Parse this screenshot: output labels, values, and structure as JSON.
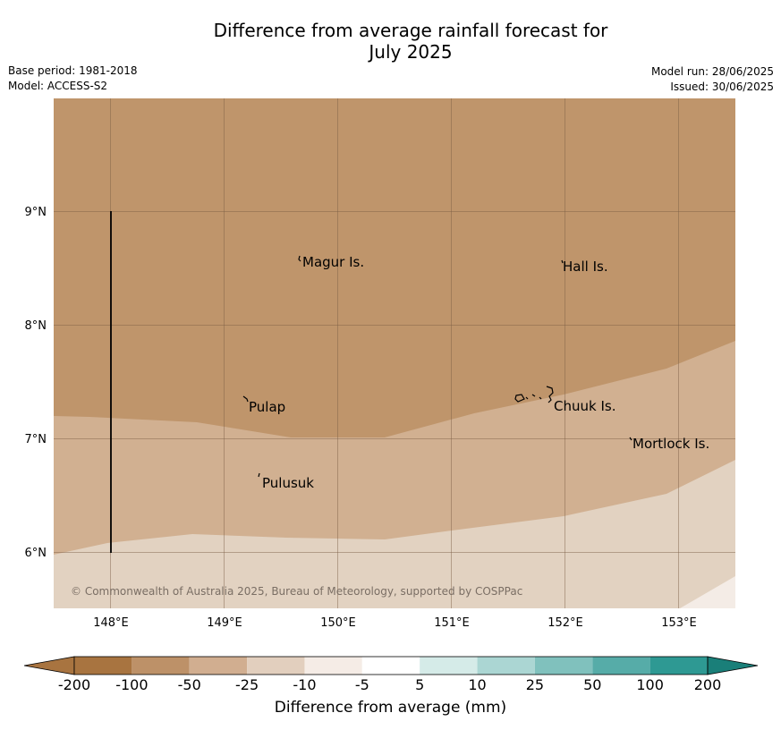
{
  "title_line1": "Difference from average rainfall forecast for",
  "title_line2": "July 2025",
  "base_period": "Base period: 1981-2018",
  "model": "Model: ACCESS-S2",
  "model_run": "Model run: 28/06/2025",
  "issued": "Issued: 30/06/2025",
  "copyright": "© Commonwealth of Australia 2025, Bureau of Meteorology, supported by COSPPac",
  "lat_ticks": [
    "9°N",
    "8°N",
    "7°N",
    "6°N"
  ],
  "lon_ticks": [
    "148°E",
    "149°E",
    "150°E",
    "151°E",
    "152°E",
    "153°E"
  ],
  "places": [
    {
      "name": "Magur Is."
    },
    {
      "name": "Hall Is."
    },
    {
      "name": "Pulap"
    },
    {
      "name": "Chuuk Is."
    },
    {
      "name": "Mortlock Is."
    },
    {
      "name": "Pulusuk"
    }
  ],
  "colorbar": {
    "title": "Difference from average (mm)",
    "labels": [
      "-200",
      "-100",
      "-50",
      "-25",
      "-10",
      "-5",
      "5",
      "10",
      "25",
      "50",
      "100",
      "200"
    ],
    "colors": [
      "#a87440",
      "#bd9168",
      "#d1ae90",
      "#e2cfbe",
      "#f5ece6",
      "#ffffff",
      "#d5ebe8",
      "#abd6d3",
      "#80c1bd",
      "#56aca8",
      "#2e9993"
    ],
    "extend_low_color": "#a87440",
    "extend_high_color": "#1a7f79"
  },
  "map_colors": {
    "band_lt_minus50": "#bf956b",
    "band_minus50_minus25": "#d1b091",
    "band_minus25_minus10": "#e2d2c1",
    "band_minus10_minus5": "#f4ece6"
  }
}
